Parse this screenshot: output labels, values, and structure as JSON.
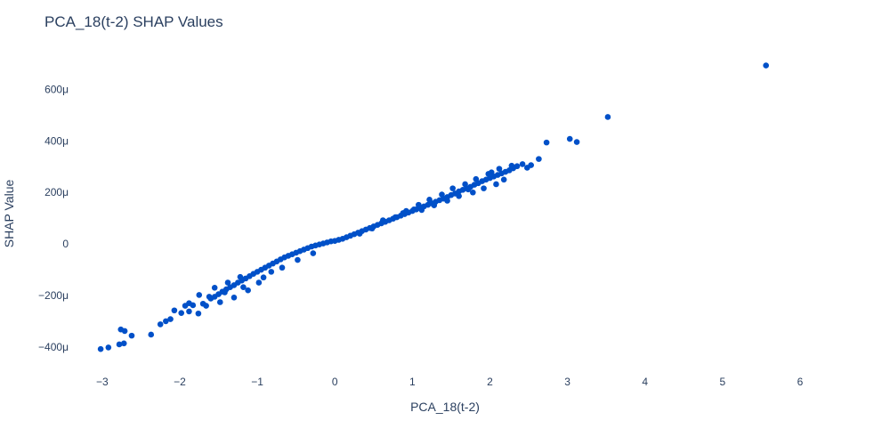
{
  "chart_data": {
    "type": "scatter",
    "title": "PCA_18(t-2) SHAP Values",
    "xlabel": "PCA_18(t-2)",
    "ylabel": "SHAP Value",
    "xlim": [
      -3.4,
      6.7
    ],
    "ylim": [
      -0.00048,
      0.00074
    ],
    "xticks": [
      -3,
      -2,
      -1,
      0,
      1,
      2,
      3,
      4,
      5,
      6
    ],
    "xtick_labels": [
      "−3",
      "−2",
      "−1",
      "0",
      "1",
      "2",
      "3",
      "4",
      "5",
      "6"
    ],
    "yticks": [
      -0.0004,
      -0.0002,
      0,
      0.0002,
      0.0004,
      0.0006
    ],
    "ytick_labels": [
      "−400μ",
      "−200μ",
      "0",
      "200μ",
      "400μ",
      "600μ"
    ],
    "grid": false,
    "legend": "none",
    "marker_color": "#0050c8",
    "series": [
      {
        "x": [
          -3.02,
          -2.92,
          -2.78,
          -2.72,
          -2.76,
          -2.71,
          -2.62,
          -2.37,
          -2.25,
          -2.18,
          -2.12,
          -2.07,
          -1.98,
          -1.93,
          -1.88,
          -1.83,
          -1.76,
          -1.7,
          -1.66,
          -1.6,
          -1.55,
          -1.5,
          -1.45,
          -1.4,
          -1.35,
          -1.3,
          -1.25,
          -1.2,
          -1.15,
          -1.1,
          -1.05,
          -1.0,
          -0.95,
          -0.9,
          -0.85,
          -0.8,
          -0.75,
          -0.7,
          -0.65,
          -0.6,
          -0.55,
          -0.5,
          -0.45,
          -0.4,
          -0.35,
          -0.3,
          -0.25,
          -0.2,
          -0.15,
          -0.1,
          -0.05,
          0.0,
          0.05,
          0.1,
          0.15,
          0.2,
          0.25,
          0.3,
          0.35,
          0.4,
          0.45,
          0.5,
          0.55,
          0.6,
          0.65,
          0.7,
          0.75,
          0.8,
          0.85,
          0.9,
          0.95,
          1.0,
          1.05,
          1.1,
          1.15,
          1.2,
          1.25,
          1.3,
          1.35,
          1.4,
          1.45,
          1.5,
          1.55,
          1.6,
          1.65,
          1.7,
          1.75,
          1.8,
          1.85,
          1.9,
          1.95,
          2.0,
          2.05,
          2.1,
          2.15,
          2.2,
          2.25,
          2.3,
          2.35,
          2.42,
          2.48,
          2.53,
          2.63,
          2.73,
          3.03,
          3.12,
          3.52,
          5.56,
          -1.75,
          -1.55,
          -1.38,
          -1.22,
          -1.48,
          -1.3,
          -1.12,
          -0.98,
          -0.92,
          -0.82,
          -1.18,
          -1.42,
          -1.62,
          -1.88,
          -0.68,
          0.62,
          0.78,
          0.92,
          1.08,
          1.22,
          1.38,
          1.52,
          1.68,
          1.82,
          1.98,
          2.12,
          2.28,
          1.12,
          1.28,
          1.45,
          1.6,
          1.78,
          1.92,
          2.08,
          2.18,
          2.02,
          1.72,
          0.88,
          1.02,
          -0.48,
          -0.28,
          0.32,
          0.48
        ],
        "y": [
          -0.000408,
          -0.000402,
          -0.00039,
          -0.000386,
          -0.000332,
          -0.000338,
          -0.000356,
          -0.000352,
          -0.000312,
          -0.0003,
          -0.000292,
          -0.000258,
          -0.000268,
          -0.00024,
          -0.000262,
          -0.000238,
          -0.00027,
          -0.000232,
          -0.00024,
          -0.000212,
          -0.000205,
          -0.000195,
          -0.000185,
          -0.000176,
          -0.000168,
          -0.00016,
          -0.00015,
          -0.000142,
          -0.000134,
          -0.000125,
          -0.000116,
          -0.000108,
          -0.0001,
          -9.2e-05,
          -8.4e-05,
          -7.6e-05,
          -6.8e-05,
          -6e-05,
          -5.2e-05,
          -4.6e-05,
          -4e-05,
          -3.4e-05,
          -2.8e-05,
          -2.2e-05,
          -1.6e-05,
          -1e-05,
          -6e-06,
          -2e-06,
          2e-06,
          6e-06,
          1e-05,
          1.2e-05,
          1.6e-05,
          2e-05,
          2.6e-05,
          3.2e-05,
          3.8e-05,
          4.4e-05,
          5e-05,
          5.6e-05,
          6.2e-05,
          6.8e-05,
          7.4e-05,
          8e-05,
          8.6e-05,
          9.2e-05,
          9.8e-05,
          0.000104,
          0.00011,
          0.000116,
          0.000122,
          0.000128,
          0.000134,
          0.00014,
          0.000146,
          0.000152,
          0.000158,
          0.000164,
          0.00017,
          0.000176,
          0.000182,
          0.00019,
          0.000196,
          0.000204,
          0.00021,
          0.000216,
          0.000222,
          0.00023,
          0.000236,
          0.000244,
          0.00025,
          0.000256,
          0.000262,
          0.000268,
          0.000274,
          0.00028,
          0.000286,
          0.000294,
          0.000302,
          0.00031,
          0.000296,
          0.000306,
          0.00033,
          0.000394,
          0.000408,
          0.000396,
          0.000493,
          0.000693,
          -0.000198,
          -0.00017,
          -0.00015,
          -0.000128,
          -0.000226,
          -0.000208,
          -0.00018,
          -0.00015,
          -0.00013,
          -0.000108,
          -0.000168,
          -0.000188,
          -0.000205,
          -0.00023,
          -9.2e-05,
          9.2e-05,
          0.000104,
          0.000128,
          0.000152,
          0.000172,
          0.000192,
          0.000216,
          0.000232,
          0.000252,
          0.000272,
          0.000292,
          0.000304,
          0.000132,
          0.00015,
          0.000168,
          0.000186,
          0.0002,
          0.000216,
          0.000232,
          0.00025,
          0.000278,
          0.000212,
          0.00012,
          0.000134,
          -6.2e-05,
          -3.6e-05,
          4e-05,
          6e-05
        ]
      }
    ]
  }
}
